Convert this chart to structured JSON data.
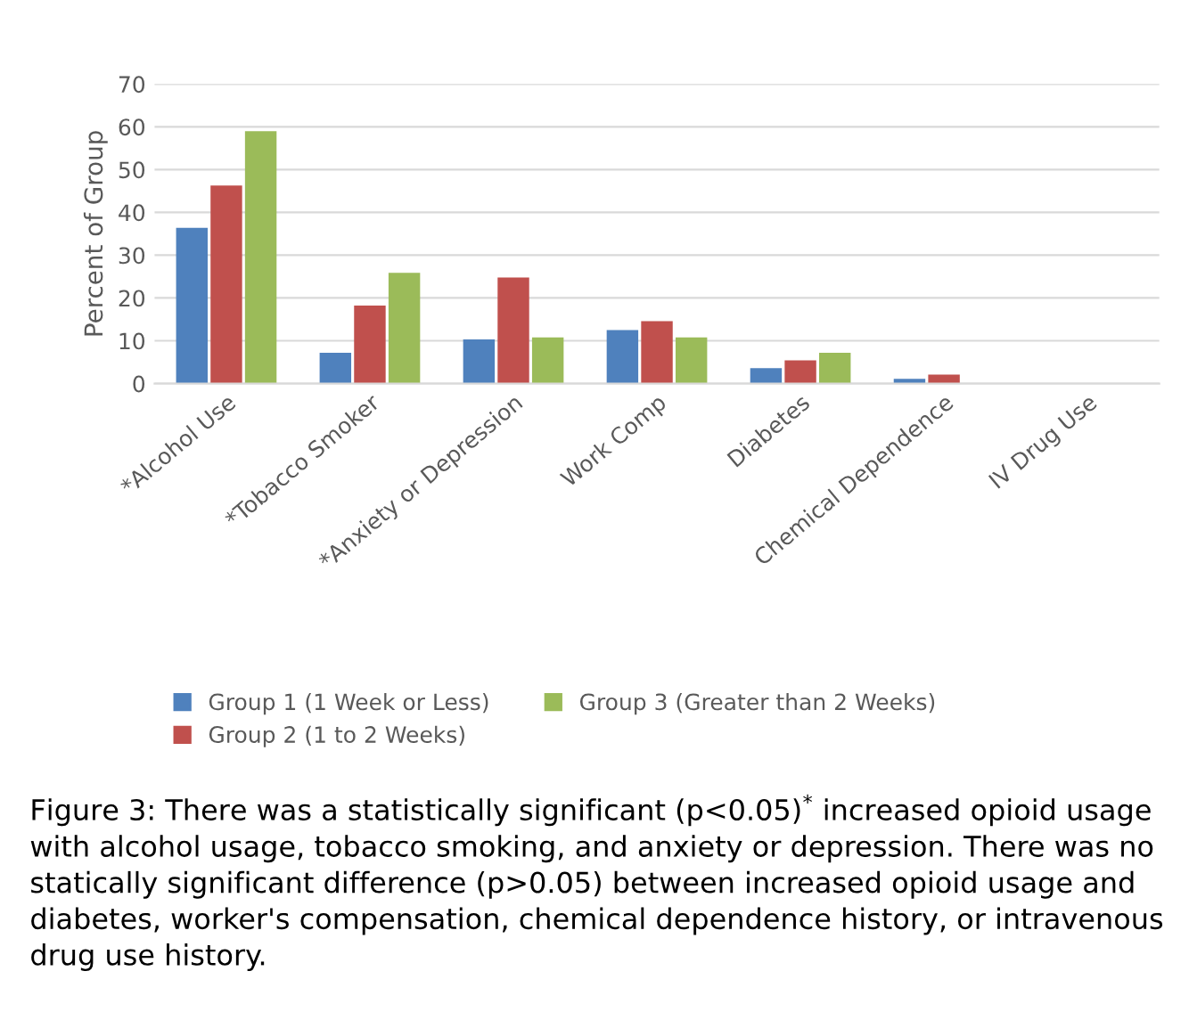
{
  "chart_data": {
    "type": "bar",
    "ylabel": "Percent of Group",
    "categories": [
      "*Alcohol Use",
      "*Tobacco Smoker",
      "*Anxiety or Depression",
      "Work Comp",
      "Diabetes",
      "Chemical Dependence",
      "IV Drug Use"
    ],
    "series": [
      {
        "name": "Group 1 (1 Week or Less)",
        "color": "#4f81bd",
        "values": [
          36.4,
          7.2,
          10.3,
          12.5,
          3.6,
          1.1,
          0
        ]
      },
      {
        "name": "Group 2 (1 to 2 Weeks)",
        "color": "#c0504d",
        "values": [
          46.3,
          18.2,
          24.8,
          14.6,
          5.4,
          2.1,
          0
        ]
      },
      {
        "name": "Group 3 (Greater than 2 Weeks)",
        "color": "#9bbb59",
        "values": [
          59.0,
          25.9,
          10.8,
          10.8,
          7.2,
          0,
          0
        ]
      }
    ],
    "ylim": [
      0,
      70
    ],
    "yticks": [
      0,
      10,
      20,
      30,
      40,
      50,
      60,
      70
    ],
    "grid": "y",
    "legend": "bottom",
    "annotations": [
      "Figure 3: There was a statistically significant (p<0.05)$^{*}$ increased opioid usage with alcohol usage, tobacco smoking, and anxiety or depression. There was no statically significant difference (p>0.05) between increased opioid usage and diabetes, worker's compensation, chemical dependence history, or intravenous drug use history."
    ]
  }
}
